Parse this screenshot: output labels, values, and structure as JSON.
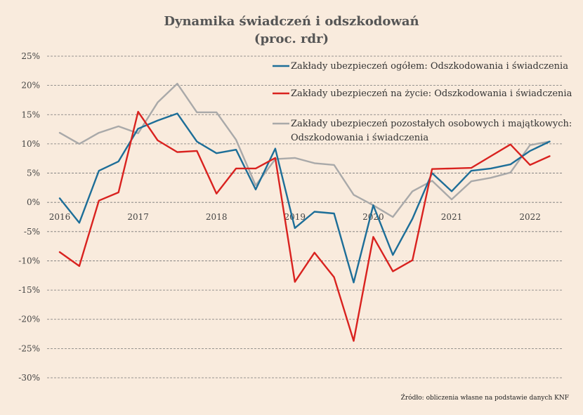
{
  "title_line1": "Dynamika świadczeń i odszkodowań",
  "title_line2": "(proc. rdr)",
  "source": "Źródło: obliczenia własne na podstawie danych KNF",
  "colors": {
    "background": "#f9ebdd",
    "series_total": "#1d6e98",
    "series_life": "#d9221f",
    "series_other": "#a9a9a9"
  },
  "chart_data": {
    "type": "line",
    "title": "Dynamika świadczeń i odszkodowań (proc. rdr)",
    "ylim": [
      -30,
      25
    ],
    "y_ticks": [
      "25%",
      "20%",
      "15%",
      "10%",
      "5%",
      "0%",
      "-5%",
      "-10%",
      "-15%",
      "-20%",
      "-25%",
      "-30%"
    ],
    "y_tick_values": [
      25,
      20,
      15,
      10,
      5,
      0,
      -5,
      -10,
      -15,
      -20,
      -25,
      -30
    ],
    "x_tick_labels": [
      "2016",
      "2017",
      "2018",
      "2019",
      "2020",
      "2021",
      "2022"
    ],
    "quarters_per_year": 4,
    "grid": true,
    "legend_position": "top-right",
    "series": [
      {
        "name": "Zakłady ubezpieczeń ogółem: Odszkodowania i świadczenia",
        "color": "#1d6e98",
        "values": [
          0.7,
          -3.5,
          5.4,
          7.0,
          12.6,
          14.0,
          15.2,
          10.4,
          8.4,
          9.0,
          2.2,
          9.2,
          -4.4,
          -1.6,
          -1.9,
          -13.7,
          -0.5,
          -9.0,
          -2.8,
          5.0,
          1.9,
          5.4,
          5.8,
          6.5,
          8.8,
          10.4
        ]
      },
      {
        "name": "Zakłady ubezpieczeń na życie: Odszkodowania i świadczenia",
        "color": "#d9221f",
        "values": [
          -8.5,
          -10.9,
          0.3,
          1.7,
          15.5,
          10.6,
          8.6,
          8.8,
          1.5,
          5.8,
          5.8,
          7.6,
          -13.6,
          -8.6,
          -12.8,
          -23.7,
          -5.9,
          -11.8,
          -9.9,
          5.7,
          5.8,
          5.9,
          7.9,
          9.9,
          6.4,
          7.9
        ]
      },
      {
        "name": "Zakłady ubezpieczeń pozostałych osobowych i majątkowych: Odszkodowania i świadczenia",
        "color": "#a9a9a9",
        "values": [
          11.9,
          10.0,
          11.9,
          13.0,
          11.8,
          17.1,
          20.3,
          15.4,
          15.4,
          10.7,
          2.9,
          7.4,
          7.6,
          6.7,
          6.4,
          1.3,
          -0.5,
          -2.5,
          1.9,
          3.7,
          0.5,
          3.6,
          4.2,
          5.1,
          9.8,
          10.4
        ]
      }
    ]
  }
}
